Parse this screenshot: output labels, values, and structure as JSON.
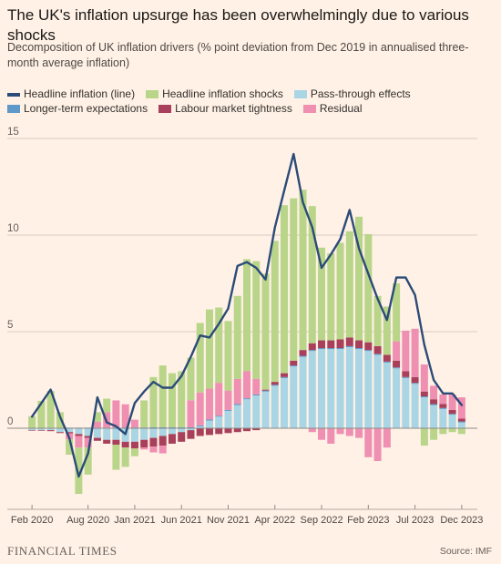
{
  "title": "The UK's inflation upsurge has been overwhelmingly due to various shocks",
  "subtitle": "Decomposition of UK inflation drivers (% point deviation from Dec 2019 in annualised three-month average inflation)",
  "footer": {
    "publisher": "FINANCIAL TIMES",
    "source": "Source: IMF"
  },
  "colors": {
    "headline": "#2b4b78",
    "shocks": "#b9d58a",
    "passthrough": "#a9d5e4",
    "expectations": "#5f99c9",
    "labour": "#a83f5b",
    "residual": "#ef8fb2",
    "grid": "#d7cbbf",
    "zero": "#8f8a86"
  },
  "chart_data": {
    "type": "bar",
    "stacked": true,
    "title": "",
    "xlabel": "",
    "ylabel": "",
    "ylim": [
      -4,
      15
    ],
    "yticks": [
      0,
      5,
      10,
      15
    ],
    "grid": true,
    "legend_position": "top-left",
    "xtick_labels": [
      "Feb 2020",
      "Aug 2020",
      "Jan 2021",
      "Jun 2021",
      "Nov 2021",
      "Apr 2022",
      "Sep 2022",
      "Feb 2023",
      "Jul 2023",
      "Dec 2023"
    ],
    "xtick_indices": [
      0,
      6,
      11,
      16,
      21,
      26,
      31,
      36,
      41,
      46
    ],
    "legend": [
      "Headline inflation (line)",
      "Headline inflation shocks",
      "Pass-through effects",
      "Longer-term expectations",
      "Labour market tightness",
      "Residual"
    ],
    "x": [
      "Feb 2020",
      "Mar 2020",
      "Apr 2020",
      "May 2020",
      "Jun 2020",
      "Jul 2020",
      "Aug 2020",
      "Sep 2020",
      "Oct 2020",
      "Nov 2020",
      "Dec 2020",
      "Jan 2021",
      "Feb 2021",
      "Mar 2021",
      "Apr 2021",
      "May 2021",
      "Jun 2021",
      "Jul 2021",
      "Aug 2021",
      "Sep 2021",
      "Oct 2021",
      "Nov 2021",
      "Dec 2021",
      "Jan 2022",
      "Feb 2022",
      "Mar 2022",
      "Apr 2022",
      "May 2022",
      "Jun 2022",
      "Jul 2022",
      "Aug 2022",
      "Sep 2022",
      "Oct 2022",
      "Nov 2022",
      "Dec 2022",
      "Jan 2023",
      "Feb 2023",
      "Mar 2023",
      "Apr 2023",
      "May 2023",
      "Jun 2023",
      "Jul 2023",
      "Aug 2023",
      "Sep 2023",
      "Oct 2023",
      "Nov 2023",
      "Dec 2023"
    ],
    "series": [
      {
        "name": "Headline inflation shocks",
        "key": "shocks",
        "values": [
          0.6,
          1.4,
          1.9,
          0.8,
          -0.8,
          -2.4,
          -1.4,
          0.5,
          0.7,
          -1.3,
          -1.0,
          -0.4,
          1.4,
          2.6,
          3.2,
          2.8,
          2.9,
          2.2,
          3.6,
          4.1,
          3.9,
          3.6,
          4.3,
          5.8,
          6.1,
          6.0,
          7.3,
          8.7,
          8.4,
          8.3,
          7.1,
          4.8,
          4.5,
          5.0,
          5.5,
          6.4,
          5.6,
          2.6,
          2.5,
          3.0,
          0.0,
          0.0,
          -0.9,
          -0.6,
          -0.3,
          -0.2,
          -0.3
        ]
      },
      {
        "name": "Pass-through effects",
        "key": "passthrough",
        "values": [
          -0.1,
          -0.1,
          -0.1,
          -0.2,
          -0.2,
          -0.3,
          -0.4,
          -0.5,
          -0.6,
          -0.6,
          -0.7,
          -0.7,
          -0.6,
          -0.5,
          -0.4,
          -0.3,
          -0.2,
          -0.1,
          0.1,
          0.4,
          0.6,
          0.9,
          1.2,
          1.5,
          1.7,
          1.9,
          2.2,
          2.6,
          3.2,
          3.7,
          4.0,
          4.1,
          4.1,
          4.1,
          4.2,
          4.1,
          4.0,
          3.8,
          3.4,
          3.1,
          2.6,
          2.3,
          1.6,
          1.2,
          1.0,
          0.7,
          0.3
        ]
      },
      {
        "name": "Longer-term expectations",
        "key": "expectations",
        "values": [
          0.02,
          0.02,
          0.03,
          0.03,
          0.03,
          0.03,
          0.03,
          0.03,
          0.03,
          0.04,
          0.04,
          0.04,
          0.04,
          0.05,
          0.05,
          0.05,
          0.05,
          0.05,
          0.05,
          0.05,
          0.05,
          0.05,
          0.05,
          0.05,
          0.05,
          0.05,
          0.05,
          0.05,
          0.05,
          0.05,
          0.05,
          0.05,
          0.05,
          0.05,
          0.05,
          0.05,
          0.05,
          0.05,
          0.05,
          0.05,
          0.05,
          0.05,
          0.05,
          0.05,
          0.05,
          0.05,
          0.05
        ]
      },
      {
        "name": "Labour market tightness",
        "key": "labour",
        "values": [
          -0.02,
          -0.03,
          -0.05,
          -0.05,
          -0.07,
          -0.1,
          -0.1,
          -0.15,
          -0.2,
          -0.25,
          -0.3,
          -0.35,
          -0.4,
          -0.45,
          -0.5,
          -0.5,
          -0.5,
          -0.45,
          -0.4,
          -0.35,
          -0.3,
          -0.25,
          -0.2,
          -0.15,
          -0.1,
          0.05,
          0.15,
          0.2,
          0.25,
          0.3,
          0.35,
          0.4,
          0.4,
          0.45,
          0.45,
          0.4,
          0.4,
          0.4,
          0.35,
          0.35,
          0.3,
          0.3,
          0.25,
          0.25,
          0.2,
          0.2,
          0.15
        ]
      },
      {
        "name": "Residual",
        "key": "residual",
        "values": [
          0.0,
          0.0,
          0.0,
          0.0,
          -0.3,
          -0.6,
          -0.5,
          0.3,
          0.8,
          1.4,
          1.2,
          0.4,
          -0.1,
          -0.3,
          -0.4,
          0.0,
          0.0,
          1.4,
          1.7,
          1.6,
          1.7,
          1.0,
          1.3,
          1.4,
          0.8,
          0.0,
          0.0,
          0.0,
          0.0,
          0.0,
          -0.2,
          -0.6,
          -0.8,
          -0.3,
          -0.4,
          -0.5,
          -1.5,
          -1.7,
          -1.0,
          1.0,
          2.1,
          2.5,
          1.4,
          0.7,
          0.5,
          0.8,
          1.1
        ]
      }
    ],
    "headline": [
      0.6,
      1.3,
      2.0,
      0.6,
      -0.5,
      -2.5,
      -1.3,
      1.6,
      0.3,
      0.1,
      -0.3,
      1.3,
      1.9,
      2.4,
      2.1,
      2.1,
      2.7,
      3.7,
      4.8,
      4.7,
      5.4,
      6.2,
      8.4,
      8.6,
      8.3,
      7.7,
      10.4,
      12.3,
      14.2,
      11.7,
      10.4,
      8.3,
      9.0,
      9.8,
      11.3,
      9.3,
      8.0,
      6.7,
      5.6,
      7.8,
      7.8,
      6.9,
      4.3,
      2.5,
      1.8,
      1.8,
      1.2
    ]
  }
}
